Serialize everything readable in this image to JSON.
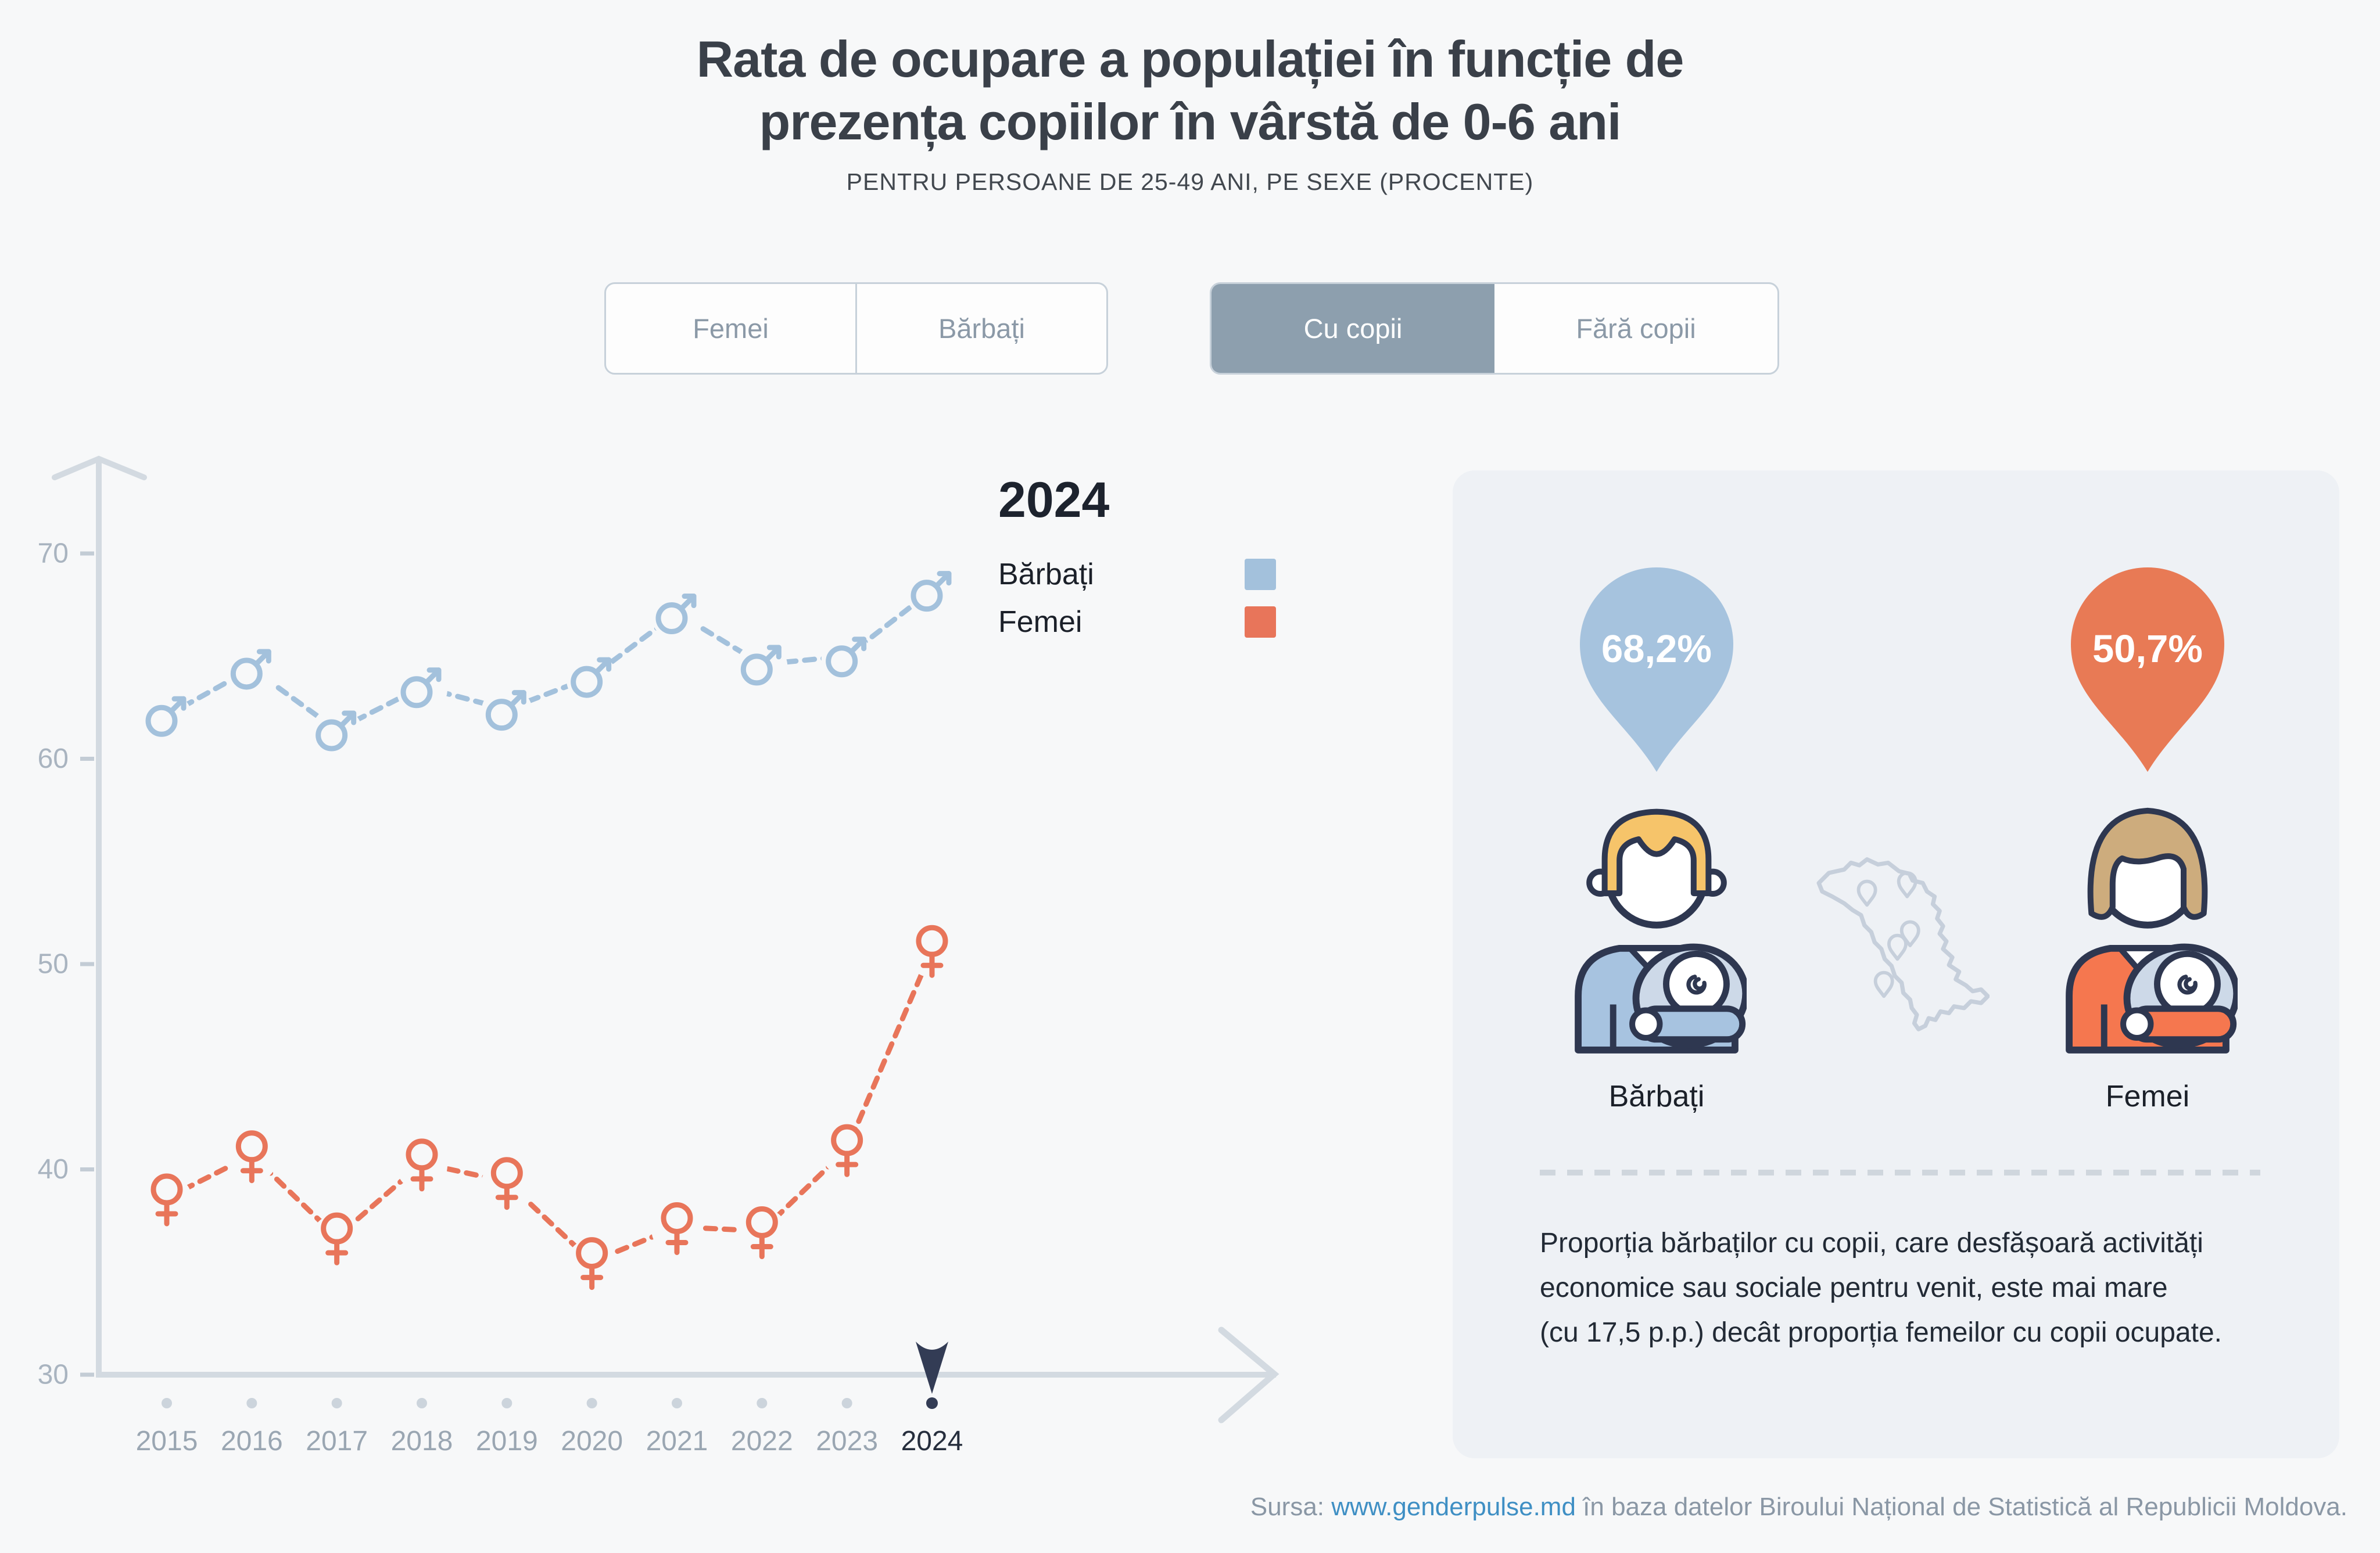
{
  "title": {
    "line1": "Rata de ocupare a populației în funcție de",
    "line2": "prezența copiilor în vârstă de 0-6 ani",
    "subtitle": "PENTRU PERSOANE DE 25-49 ANI, PE SEXE (PROCENTE)"
  },
  "toggles": {
    "sex": {
      "options": [
        "Femei",
        "Bărbați"
      ],
      "selected": null
    },
    "children": {
      "options": [
        "Cu copii",
        "Fără copii"
      ],
      "selected": "Cu copii"
    }
  },
  "legend": {
    "year": "2024",
    "series": [
      {
        "label": "Bărbați",
        "color": "#a3c1dc"
      },
      {
        "label": "Femei",
        "color": "#e8755a"
      }
    ]
  },
  "chart_data": {
    "type": "line",
    "x": [
      2015,
      2016,
      2017,
      2018,
      2019,
      2020,
      2021,
      2022,
      2023,
      2024
    ],
    "series": [
      {
        "name": "Bărbați",
        "marker": "male",
        "color": "#a3c1dc",
        "values": [
          62.1,
          64.4,
          61.4,
          63.5,
          62.4,
          64.0,
          67.1,
          64.6,
          65.0,
          68.2
        ]
      },
      {
        "name": "Femei",
        "marker": "female",
        "color": "#e8755a",
        "values": [
          38.6,
          40.7,
          36.7,
          40.3,
          39.4,
          35.5,
          37.2,
          37.0,
          41.0,
          50.7
        ]
      }
    ],
    "ylim": [
      30,
      70
    ],
    "yticks": [
      30,
      40,
      50,
      60,
      70
    ],
    "highlight_year": 2024,
    "grid": false,
    "line_style": "dashed"
  },
  "panel": {
    "male": {
      "value": "68,2%",
      "label": "Bărbați",
      "color": "#a6c3de"
    },
    "female": {
      "value": "50,7%",
      "label": "Femei",
      "color": "#e87a55"
    },
    "note": [
      "Proporția bărbaților cu copii, care desfășoară activități",
      "economice sau sociale pentru venit, este mai mare",
      "(cu 17,5 p.p.) decât proporția femeilor cu copii ocupate."
    ]
  },
  "footer": {
    "prefix": "Sursa:",
    "link": "www.genderpulse.md",
    "suffix": "în baza datelor Biroului Național de Statistică al Republicii Moldova."
  }
}
